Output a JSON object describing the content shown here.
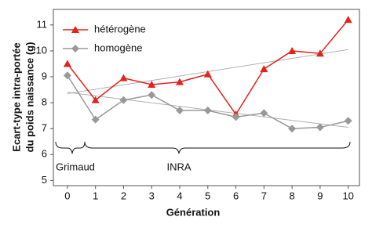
{
  "chart_data": {
    "type": "line",
    "x": [
      0,
      1,
      2,
      3,
      4,
      5,
      6,
      7,
      8,
      9,
      10
    ],
    "series": [
      {
        "name": "hétérogène",
        "color": "#e2231a",
        "marker": "triangle",
        "values": [
          9.5,
          8.1,
          8.95,
          8.7,
          8.8,
          9.1,
          7.55,
          9.3,
          10.0,
          9.9,
          11.2
        ],
        "trend_x": [
          0,
          10
        ],
        "trend_values": [
          8.35,
          10.05
        ]
      },
      {
        "name": "homogène",
        "color": "#999999",
        "marker": "diamond",
        "values": [
          9.05,
          7.35,
          8.1,
          8.3,
          7.7,
          7.7,
          7.45,
          7.6,
          7.0,
          7.05,
          7.3
        ],
        "trend_x": [
          0,
          10
        ],
        "trend_values": [
          8.4,
          7.05
        ]
      }
    ],
    "trend_color": "#b0b0b0",
    "xlabel": "Génération",
    "ylabel": [
      "Ecart-type intra-portée",
      "du poids naissance (g)"
    ],
    "annotations": [
      "Grimaud",
      "INRA"
    ],
    "xlim": [
      -0.5,
      10.4
    ],
    "xticks": [
      0,
      1,
      2,
      3,
      4,
      5,
      6,
      7,
      8,
      9,
      10
    ],
    "ylim": [
      4.8,
      11.6
    ],
    "yticks": [
      5,
      6,
      7,
      8,
      9,
      10,
      11
    ],
    "legend": "upper left",
    "grid": false
  }
}
